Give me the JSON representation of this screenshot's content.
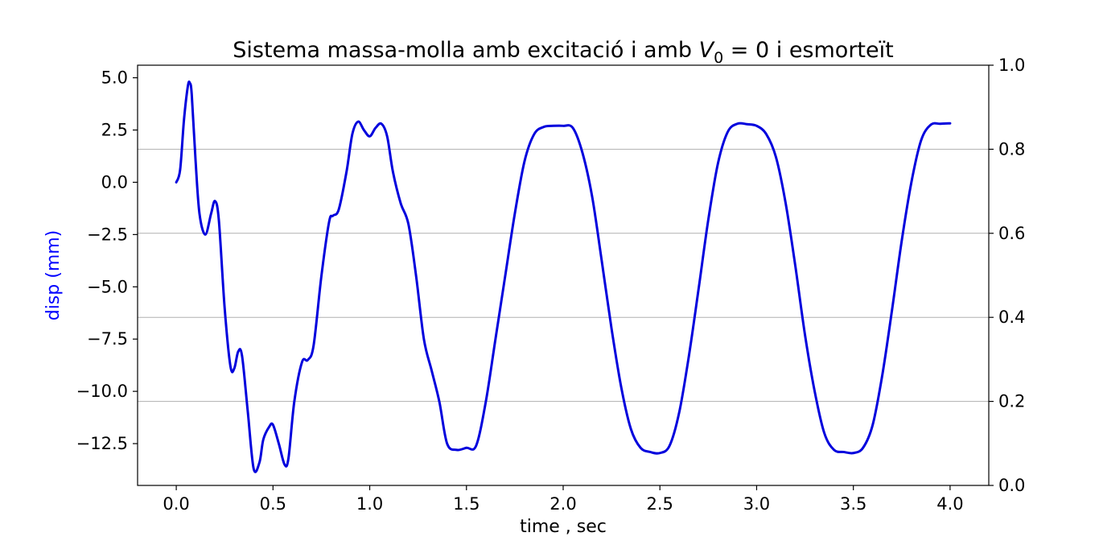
{
  "chart_data": {
    "type": "line",
    "title_prefix": "Sistema massa-molla amb excitació i amb ",
    "title_var": "V",
    "title_sub": "0",
    "title_suffix": " = 0 i esmorteït",
    "xlabel": "time , sec",
    "ylabel": "disp (mm)",
    "ylabel_color": "#0000ff",
    "line_color": "#0000dd",
    "xlim": [
      -0.2,
      4.2
    ],
    "ylim": [
      -14.5,
      5.6
    ],
    "y2lim": [
      0.0,
      1.0
    ],
    "xticks": [
      0.0,
      0.5,
      1.0,
      1.5,
      2.0,
      2.5,
      3.0,
      3.5,
      4.0
    ],
    "xtick_labels": [
      "0.0",
      "0.5",
      "1.0",
      "1.5",
      "2.0",
      "2.5",
      "3.0",
      "3.5",
      "4.0"
    ],
    "yticks": [
      5.0,
      2.5,
      0.0,
      -2.5,
      -5.0,
      -7.5,
      -10.0,
      -12.5
    ],
    "ytick_labels": [
      "5.0",
      "2.5",
      "0.0",
      "−2.5",
      "−5.0",
      "−7.5",
      "−10.0",
      "−12.5"
    ],
    "y2ticks": [
      0.0,
      0.2,
      0.4,
      0.6,
      0.8,
      1.0
    ],
    "y2tick_labels": [
      "0.0",
      "0.2",
      "0.4",
      "0.6",
      "0.8",
      "1.0"
    ],
    "grid_on": "y2",
    "series": [
      {
        "name": "disp",
        "x": [
          0.0,
          0.02,
          0.04,
          0.06,
          0.07,
          0.08,
          0.1,
          0.12,
          0.15,
          0.18,
          0.2,
          0.22,
          0.25,
          0.28,
          0.3,
          0.32,
          0.34,
          0.37,
          0.4,
          0.43,
          0.45,
          0.48,
          0.5,
          0.53,
          0.56,
          0.58,
          0.61,
          0.65,
          0.68,
          0.71,
          0.75,
          0.79,
          0.81,
          0.84,
          0.88,
          0.91,
          0.94,
          0.97,
          1.0,
          1.03,
          1.06,
          1.09,
          1.12,
          1.16,
          1.2,
          1.24,
          1.28,
          1.32,
          1.36,
          1.4,
          1.45,
          1.5,
          1.55,
          1.6,
          1.65,
          1.7,
          1.75,
          1.8,
          1.85,
          1.9,
          1.95,
          2.0,
          2.05,
          2.1,
          2.15,
          2.2,
          2.25,
          2.3,
          2.35,
          2.4,
          2.45,
          2.5,
          2.55,
          2.6,
          2.65,
          2.7,
          2.75,
          2.8,
          2.85,
          2.9,
          2.95,
          3.0,
          3.05,
          3.1,
          3.15,
          3.2,
          3.25,
          3.3,
          3.35,
          3.4,
          3.45,
          3.5,
          3.55,
          3.6,
          3.65,
          3.7,
          3.75,
          3.8,
          3.85,
          3.9,
          3.95,
          4.0
        ],
        "y": [
          0.0,
          0.6,
          3.0,
          4.6,
          4.75,
          4.2,
          1.0,
          -1.5,
          -2.5,
          -1.5,
          -0.9,
          -1.8,
          -6.0,
          -8.8,
          -8.9,
          -8.1,
          -8.3,
          -11.0,
          -13.7,
          -13.4,
          -12.3,
          -11.7,
          -11.6,
          -12.5,
          -13.5,
          -13.2,
          -10.5,
          -8.6,
          -8.5,
          -7.8,
          -4.5,
          -1.9,
          -1.6,
          -1.3,
          0.5,
          2.3,
          2.9,
          2.5,
          2.2,
          2.6,
          2.8,
          2.2,
          0.5,
          -1.0,
          -2.0,
          -4.5,
          -7.5,
          -9.0,
          -10.5,
          -12.5,
          -12.8,
          -12.7,
          -12.6,
          -10.5,
          -7.5,
          -4.5,
          -1.5,
          1.0,
          2.3,
          2.65,
          2.7,
          2.7,
          2.6,
          1.4,
          -0.7,
          -3.8,
          -7.0,
          -9.8,
          -11.8,
          -12.7,
          -12.9,
          -12.95,
          -12.6,
          -11.0,
          -8.3,
          -5.1,
          -1.8,
          0.9,
          2.4,
          2.8,
          2.78,
          2.7,
          2.3,
          1.2,
          -1.0,
          -4.0,
          -7.3,
          -10.0,
          -12.0,
          -12.8,
          -12.9,
          -12.95,
          -12.7,
          -11.6,
          -9.2,
          -6.1,
          -2.8,
          0.0,
          2.0,
          2.75,
          2.8,
          2.82
        ]
      }
    ]
  }
}
